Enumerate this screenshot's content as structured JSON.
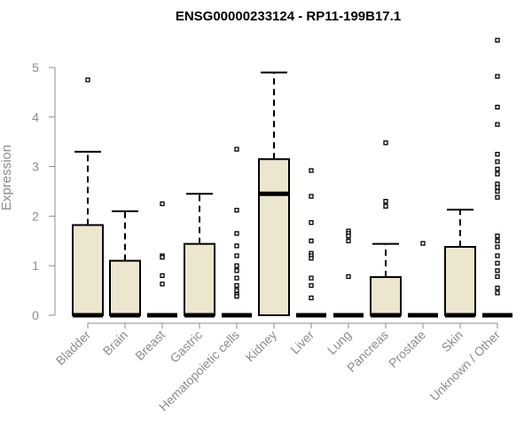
{
  "chart_data": {
    "type": "boxplot",
    "title": "ENSG00000233124 - RP11-199B17.1",
    "ylabel": "Expression",
    "xlabel": "",
    "ylim": [
      0,
      5.6
    ],
    "yticks": [
      0,
      1,
      2,
      3,
      4,
      5
    ],
    "grid": false,
    "colors": {
      "box_fill": "#ede6cf",
      "box_stroke": "#000000",
      "axis": "#8c8c8c"
    },
    "categories": [
      "Bladder",
      "Brain",
      "Breast",
      "Gastric",
      "Hematopoietic cells",
      "Kidney",
      "Liver",
      "Lung",
      "Pancreas",
      "Prostate",
      "Skin",
      "Unknown / Other"
    ],
    "boxes": [
      {
        "q1": 0,
        "median": 0,
        "q3": 1.82,
        "whisker_low": 0,
        "whisker_high": 3.3,
        "outliers": [
          4.75
        ]
      },
      {
        "q1": 0,
        "median": 0,
        "q3": 1.1,
        "whisker_low": 0,
        "whisker_high": 2.1,
        "outliers": []
      },
      {
        "q1": 0,
        "median": 0,
        "q3": 0,
        "whisker_low": 0,
        "whisker_high": 0,
        "outliers": [
          2.25,
          1.2,
          1.17,
          0.8,
          0.63
        ]
      },
      {
        "q1": 0,
        "median": 0,
        "q3": 1.44,
        "whisker_low": 0,
        "whisker_high": 2.45,
        "outliers": []
      },
      {
        "q1": 0,
        "median": 0,
        "q3": 0,
        "whisker_low": 0,
        "whisker_high": 0,
        "outliers": [
          3.35,
          2.12,
          1.65,
          1.4,
          1.2,
          1.0,
          0.9,
          0.75,
          0.6,
          0.5,
          0.42,
          0.38
        ]
      },
      {
        "q1": 0,
        "median": 2.45,
        "q3": 3.15,
        "whisker_low": 0,
        "whisker_high": 4.9,
        "outliers": []
      },
      {
        "q1": 0,
        "median": 0,
        "q3": 0,
        "whisker_low": 0,
        "whisker_high": 0,
        "outliers": [
          2.92,
          2.4,
          1.87,
          1.5,
          1.25,
          1.2,
          1.15,
          0.75,
          0.6,
          0.35
        ]
      },
      {
        "q1": 0,
        "median": 0,
        "q3": 0,
        "whisker_low": 0,
        "whisker_high": 0,
        "outliers": [
          1.7,
          1.65,
          1.6,
          1.5,
          0.78
        ]
      },
      {
        "q1": 0,
        "median": 0,
        "q3": 0.77,
        "whisker_low": 0,
        "whisker_high": 1.44,
        "outliers": [
          3.48,
          2.3,
          2.2
        ]
      },
      {
        "q1": 0,
        "median": 0,
        "q3": 0,
        "whisker_low": 0,
        "whisker_high": 0,
        "outliers": [
          1.45
        ]
      },
      {
        "q1": 0,
        "median": 0,
        "q3": 1.38,
        "whisker_low": 0,
        "whisker_high": 2.13,
        "outliers": []
      },
      {
        "q1": 0,
        "median": 0,
        "q3": 0,
        "whisker_low": 0,
        "whisker_high": 0,
        "outliers": [
          5.55,
          4.82,
          4.2,
          3.85,
          3.25,
          3.1,
          2.95,
          2.85,
          2.65,
          2.58,
          2.5,
          2.38,
          1.6,
          1.5,
          1.38,
          1.2,
          1.05,
          0.9,
          0.78,
          0.55,
          0.45
        ]
      }
    ]
  }
}
